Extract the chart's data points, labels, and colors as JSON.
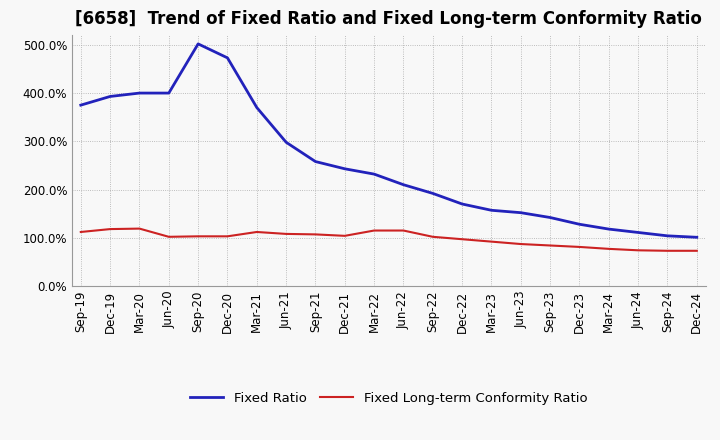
{
  "title": "[6658]  Trend of Fixed Ratio and Fixed Long-term Conformity Ratio",
  "x_labels": [
    "Sep-19",
    "Dec-19",
    "Mar-20",
    "Jun-20",
    "Sep-20",
    "Dec-20",
    "Mar-21",
    "Jun-21",
    "Sep-21",
    "Dec-21",
    "Mar-22",
    "Jun-22",
    "Sep-22",
    "Dec-22",
    "Mar-23",
    "Jun-23",
    "Sep-23",
    "Dec-23",
    "Mar-24",
    "Jun-24",
    "Sep-24",
    "Dec-24"
  ],
  "fixed_ratio": [
    375,
    393,
    400,
    400,
    502,
    473,
    370,
    298,
    258,
    243,
    232,
    210,
    192,
    170,
    157,
    152,
    142,
    128,
    118,
    111,
    104,
    101
  ],
  "fixed_lt_ratio": [
    112,
    118,
    119,
    102,
    103,
    103,
    112,
    108,
    107,
    104,
    115,
    115,
    102,
    97,
    92,
    87,
    84,
    81,
    77,
    74,
    73,
    73
  ],
  "ylim": [
    0,
    520
  ],
  "yticks": [
    0,
    100,
    200,
    300,
    400,
    500
  ],
  "ytick_labels": [
    "0.0%",
    "100.0%",
    "200.0%",
    "300.0%",
    "400.0%",
    "500.0%"
  ],
  "blue_color": "#2222bb",
  "red_color": "#cc2222",
  "bg_color": "#f8f8f8",
  "plot_bg_color": "#f8f8f8",
  "grid_color": "#aaaaaa",
  "legend_fixed_ratio": "Fixed Ratio",
  "legend_fixed_lt_ratio": "Fixed Long-term Conformity Ratio",
  "title_fontsize": 12,
  "axis_fontsize": 8.5,
  "legend_fontsize": 9.5
}
